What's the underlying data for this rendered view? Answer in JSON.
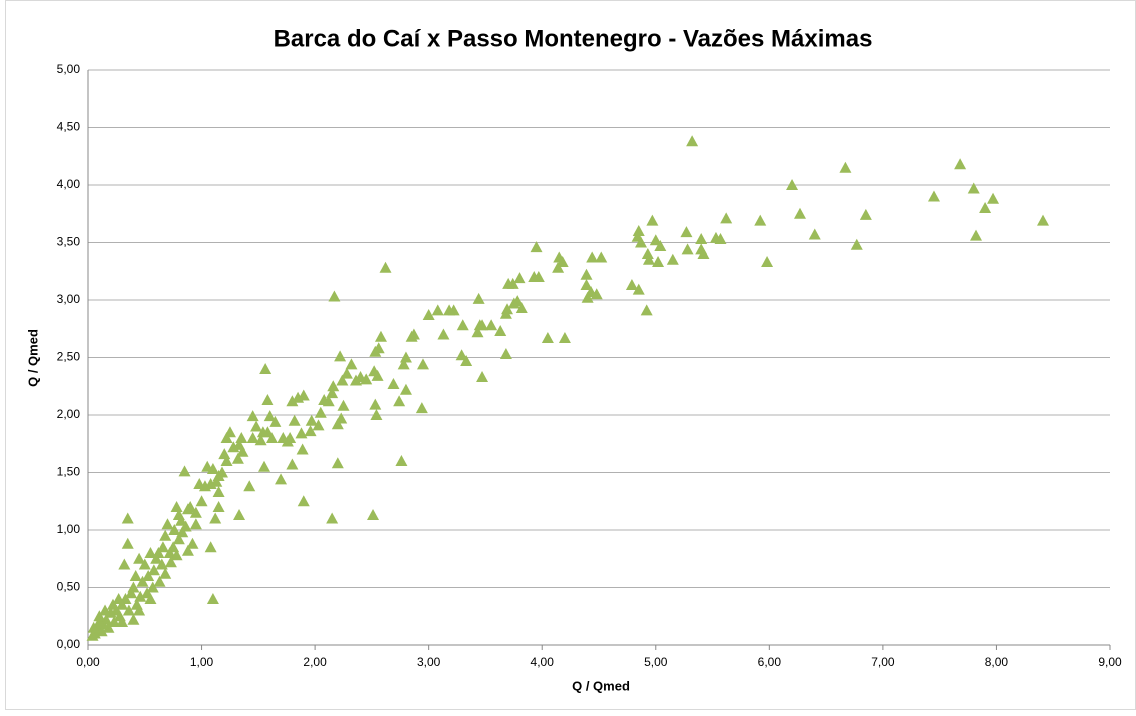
{
  "chart_data": {
    "type": "scatter",
    "title": "Barca do Caí x Passo Montenegro - Vazões Máximas",
    "x_label": "Q / Qmed",
    "y_label": "Q / Qmed",
    "color": "#9bbb59",
    "grid": true,
    "xlim": [
      0,
      9
    ],
    "ylim": [
      0,
      5
    ],
    "xticks": [
      {
        "value": 0,
        "label": "0,00"
      },
      {
        "value": 1,
        "label": "1,00"
      },
      {
        "value": 2,
        "label": "2,00"
      },
      {
        "value": 3,
        "label": "3,00"
      },
      {
        "value": 4,
        "label": "4,00"
      },
      {
        "value": 5,
        "label": "5,00"
      },
      {
        "value": 6,
        "label": "6,00"
      },
      {
        "value": 7,
        "label": "7,00"
      },
      {
        "value": 8,
        "label": "8,00"
      },
      {
        "value": 9,
        "label": "9,00"
      }
    ],
    "yticks": [
      {
        "value": 0,
        "label": "0,00"
      },
      {
        "value": 0.5,
        "label": "0,50"
      },
      {
        "value": 1,
        "label": "1,00"
      },
      {
        "value": 1.5,
        "label": "1,50"
      },
      {
        "value": 2,
        "label": "2,00"
      },
      {
        "value": 2.5,
        "label": "2,50"
      },
      {
        "value": 3,
        "label": "3,00"
      },
      {
        "value": 3.5,
        "label": "3,50"
      },
      {
        "value": 4,
        "label": "4,00"
      },
      {
        "value": 4.5,
        "label": "4,50"
      },
      {
        "value": 5,
        "label": "5,00"
      }
    ],
    "x": [
      5.32,
      7.68,
      6.67,
      6.2,
      7.8,
      7.97,
      7.45,
      7.9,
      6.85,
      6.27,
      8.41,
      5.92,
      5.62,
      7.82,
      6.4,
      6.77,
      5.98,
      4.97,
      5.27,
      5.53,
      5.57,
      5.4,
      5.4,
      5.42,
      5.28,
      5.15,
      5.02,
      4.93,
      5.0,
      5.04,
      4.94,
      4.85,
      4.84,
      4.87,
      4.92,
      4.85,
      4.79,
      4.52,
      4.44,
      4.48,
      4.43,
      4.4,
      4.39,
      4.39,
      4.2,
      4.05,
      4.15,
      4.18,
      4.14,
      3.95,
      3.97,
      3.93,
      3.8,
      3.74,
      3.7,
      3.78,
      3.82,
      3.75,
      3.69,
      3.68,
      3.63,
      3.68,
      3.55,
      3.47,
      3.47,
      3.43,
      3.44,
      3.45,
      3.33,
      3.3,
      3.29,
      3.22,
      3.18,
      3.08,
      3.13,
      3.0,
      2.95,
      2.94,
      2.87,
      2.85,
      2.8,
      2.78,
      2.8,
      2.74,
      2.76,
      2.69,
      2.62,
      2.58,
      2.56,
      2.55,
      2.53,
      2.52,
      2.53,
      2.54,
      2.51,
      2.45,
      2.4,
      2.36,
      2.32,
      2.28,
      2.22,
      2.24,
      2.25,
      2.23,
      2.2,
      2.2,
      2.17,
      2.16,
      2.15,
      2.15,
      2.12,
      2.08,
      2.05,
      2.03,
      1.97,
      1.96,
      1.9,
      1.88,
      1.89,
      1.9,
      1.85,
      1.82,
      1.8,
      1.78,
      1.76,
      1.8,
      1.72,
      1.7,
      1.65,
      1.62,
      1.6,
      1.58,
      1.56,
      1.58,
      1.55,
      1.54,
      1.52,
      1.48,
      1.45,
      1.45,
      1.42,
      1.36,
      1.35,
      1.33,
      1.32,
      1.33,
      1.28,
      1.25,
      1.22,
      1.22,
      1.2,
      1.18,
      1.15,
      1.15,
      1.15,
      1.13,
      1.12,
      1.1,
      1.08,
      1.08,
      1.1,
      1.05,
      1.03,
      1.0,
      0.98,
      0.95,
      0.95,
      0.92,
      0.9,
      0.88,
      0.86,
      0.85,
      0.83,
      0.8,
      0.8,
      0.78,
      0.76,
      0.75,
      0.73,
      0.7,
      0.68,
      0.66,
      0.65,
      0.62,
      0.6,
      0.58,
      0.57,
      0.55,
      0.53,
      0.52,
      0.5,
      0.48,
      0.46,
      0.45,
      0.43,
      0.42,
      0.4,
      0.4,
      0.38,
      0.36,
      0.35,
      0.35,
      0.33,
      0.32,
      0.3,
      0.28,
      0.27,
      0.25,
      0.23,
      0.22,
      0.2,
      0.18,
      0.16,
      0.15,
      0.13,
      0.12,
      0.1,
      0.08,
      0.06,
      0.05,
      0.04,
      0.1,
      0.3,
      0.45,
      0.55,
      0.63,
      0.68,
      0.72,
      0.78,
      0.82,
      0.88
    ],
    "values": [
      4.38,
      4.18,
      4.15,
      4.0,
      3.97,
      3.88,
      3.9,
      3.8,
      3.74,
      3.75,
      3.69,
      3.69,
      3.71,
      3.56,
      3.57,
      3.48,
      3.33,
      3.69,
      3.59,
      3.54,
      3.53,
      3.53,
      3.44,
      3.4,
      3.44,
      3.35,
      3.33,
      3.4,
      3.52,
      3.47,
      3.35,
      3.6,
      3.55,
      3.5,
      2.91,
      3.09,
      3.13,
      3.37,
      3.37,
      3.05,
      3.07,
      3.02,
      3.13,
      3.22,
      2.67,
      2.67,
      3.37,
      3.33,
      3.28,
      3.46,
      3.2,
      3.2,
      3.19,
      3.14,
      3.14,
      2.99,
      2.93,
      2.97,
      2.92,
      2.88,
      2.73,
      2.53,
      2.78,
      2.33,
      2.78,
      2.72,
      3.01,
      2.78,
      2.47,
      2.78,
      2.52,
      2.91,
      2.91,
      2.91,
      2.7,
      2.87,
      2.44,
      2.06,
      2.7,
      2.68,
      2.5,
      2.44,
      2.22,
      2.12,
      1.6,
      2.27,
      3.28,
      2.68,
      2.58,
      2.34,
      2.55,
      2.38,
      2.09,
      2.0,
      1.13,
      2.31,
      2.33,
      2.3,
      2.44,
      2.36,
      2.51,
      2.3,
      2.08,
      1.97,
      1.92,
      1.58,
      3.03,
      2.25,
      2.19,
      1.1,
      2.12,
      2.13,
      2.02,
      1.91,
      1.95,
      1.86,
      2.17,
      1.84,
      1.7,
      1.25,
      2.15,
      1.95,
      2.12,
      1.8,
      1.77,
      1.57,
      1.8,
      1.44,
      1.94,
      1.8,
      1.99,
      1.85,
      2.4,
      2.13,
      1.55,
      1.85,
      1.78,
      1.9,
      1.99,
      1.8,
      1.38,
      1.68,
      1.8,
      1.74,
      1.62,
      1.13,
      1.72,
      1.85,
      1.8,
      1.6,
      1.66,
      1.5,
      1.47,
      1.33,
      1.2,
      1.42,
      1.1,
      1.53,
      1.4,
      0.85,
      0.4,
      1.55,
      1.38,
      1.25,
      1.4,
      1.15,
      1.05,
      0.88,
      1.2,
      1.18,
      1.03,
      1.51,
      0.98,
      1.13,
      0.92,
      1.2,
      1.0,
      0.85,
      0.72,
      1.05,
      0.95,
      0.85,
      0.7,
      0.8,
      0.75,
      0.65,
      0.5,
      0.8,
      0.6,
      0.45,
      0.7,
      0.55,
      0.42,
      0.75,
      0.35,
      0.6,
      0.5,
      0.22,
      0.45,
      0.3,
      1.1,
      0.88,
      0.4,
      0.7,
      0.35,
      0.25,
      0.4,
      0.3,
      0.2,
      0.35,
      0.28,
      0.15,
      0.22,
      0.3,
      0.18,
      0.12,
      0.2,
      0.14,
      0.1,
      0.15,
      0.08,
      0.25,
      0.2,
      0.3,
      0.4,
      0.55,
      0.62,
      0.8,
      0.78,
      1.08,
      0.82
    ]
  }
}
